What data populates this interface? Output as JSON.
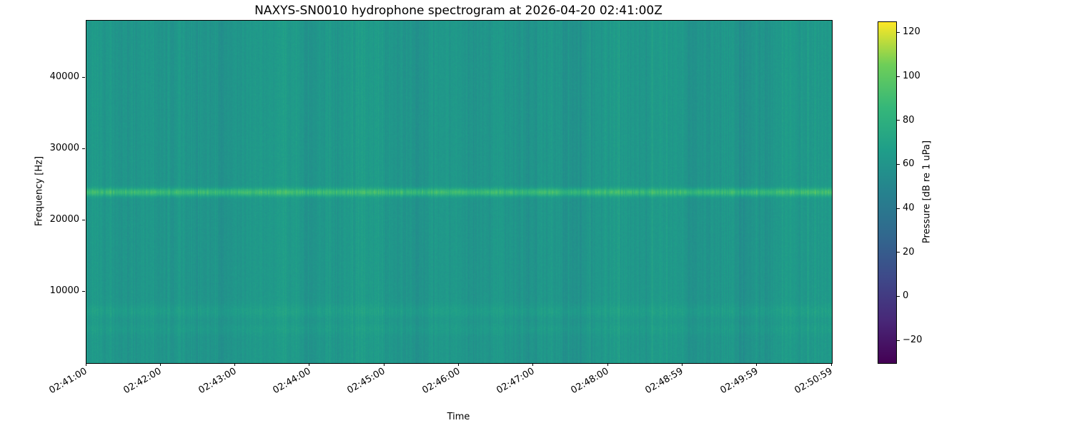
{
  "figure": {
    "title": "NAXYS-SN0010 hydrophone spectrogram at 2026-04-20 02:41:00Z",
    "xlabel": "Time",
    "ylabel": "Frequency [Hz]",
    "colorbar_label": "Pressure [dB re 1 uPa]"
  },
  "chart_data": {
    "type": "heatmap",
    "title": "NAXYS-SN0010 hydrophone spectrogram at 2026-04-20 02:41:00Z",
    "xlabel": "Time",
    "ylabel": "Frequency [Hz]",
    "x_ticks": [
      "02:41:00",
      "02:42:00",
      "02:43:00",
      "02:44:00",
      "02:45:00",
      "02:46:00",
      "02:47:00",
      "02:48:00",
      "02:48:59",
      "02:49:59",
      "02:50:59"
    ],
    "y_ticks": [
      10000,
      20000,
      30000,
      40000
    ],
    "ylim": [
      0,
      48000
    ],
    "time_span": "02:41:00 to 02:50:59 (about 10 minutes)",
    "grid": false,
    "legend": null,
    "colorbar": {
      "label": "Pressure [dB re 1 uPa]",
      "ticks": [
        120,
        100,
        80,
        60,
        40,
        20,
        0,
        -20
      ],
      "vmin": -30,
      "vmax": 125,
      "colormap": "viridis"
    },
    "background_level_db": 62,
    "tonal_bands": [
      {
        "frequency_hz": 24000,
        "peak_db_above_background": 26,
        "bandwidth_hz": 380,
        "description": "strong continuous narrowband tone visible as bright green horizontal line"
      },
      {
        "frequency_hz": 7300,
        "peak_db_above_background": 5,
        "bandwidth_hz": 650,
        "description": "faint broadband band"
      },
      {
        "frequency_hz": 4800,
        "peak_db_above_background": 3,
        "bandwidth_hz": 550,
        "description": "very faint band"
      }
    ],
    "column_level_variation_db": 5,
    "pixel_noise_db": 2.5,
    "render": {
      "columns": 1043,
      "rows": 480,
      "seed": 42
    },
    "colormap_stops": [
      [
        0.0,
        "#440154"
      ],
      [
        0.125,
        "#482878"
      ],
      [
        0.25,
        "#3e4989"
      ],
      [
        0.375,
        "#31688e"
      ],
      [
        0.5,
        "#26828e"
      ],
      [
        0.625,
        "#1f9e89"
      ],
      [
        0.75,
        "#35b779"
      ],
      [
        0.875,
        "#6ece58"
      ],
      [
        1.0,
        "#fde725"
      ]
    ]
  }
}
